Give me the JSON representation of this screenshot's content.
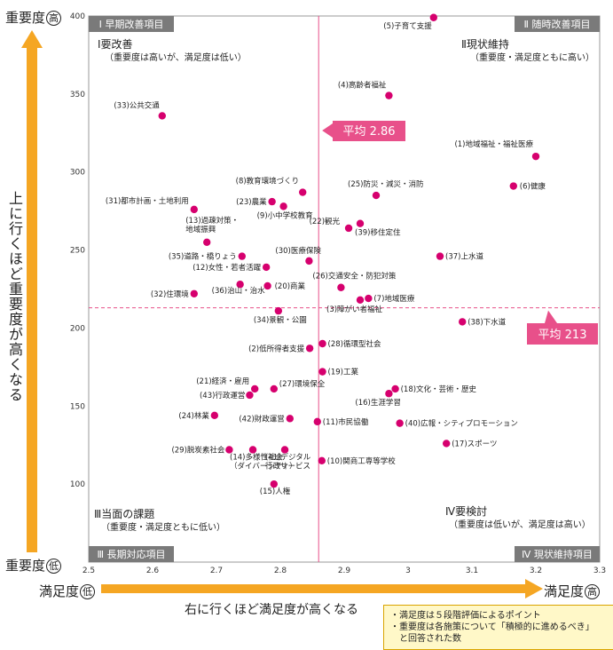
{
  "y_axis": {
    "high_label": "重要度",
    "high_mark": "高",
    "low_label": "重要度",
    "low_mark": "低",
    "description": "上に行くほど重要度が高くなる"
  },
  "x_axis": {
    "low_label": "満足度",
    "low_mark": "低",
    "high_label": "満足度",
    "high_mark": "高",
    "description": "右に行くほど満足度が高くなる"
  },
  "notes": [
    "・満足度は５段階評価によるポイント",
    "・重要度は各施策について「積極的に進めるべき」",
    "と回答された数"
  ],
  "quadrants": {
    "q1": {
      "badge": "Ⅰ 早期改善項目",
      "heading": "Ⅰ要改善",
      "sub": "（重要度は高いが、満足度は低い）"
    },
    "q2": {
      "badge": "Ⅱ 随時改善項目",
      "heading": "Ⅱ現状維持",
      "sub": "（重要度・満足度ともに高い）"
    },
    "q3": {
      "badge": "Ⅲ 長期対応項目",
      "heading": "Ⅲ当面の課題",
      "sub": "（重要度・満足度ともに低い）"
    },
    "q4": {
      "badge": "Ⅳ 現状維持項目",
      "heading": "Ⅳ要検討",
      "sub": "（重要度は低いが、満足度は高い）"
    }
  },
  "chart_data": {
    "type": "scatter",
    "xlim": [
      2.5,
      3.3
    ],
    "ylim": [
      50,
      400
    ],
    "x_ticks": [
      "2.5",
      "2.6",
      "2.7",
      "2.8",
      "2.9",
      "3",
      "3.1",
      "3.2",
      "3.3"
    ],
    "y_ticks": [
      "100",
      "150",
      "200",
      "250",
      "300",
      "350",
      "400"
    ],
    "mean_x": {
      "value": 2.86,
      "label": "平均 2.86"
    },
    "mean_y": {
      "value": 213,
      "label": "平均 213"
    },
    "point_color": "#d6006e",
    "accent_color": "#e8508a",
    "axis_arrow_color": "#f5a623",
    "points": [
      {
        "label": "(5)子育て支援",
        "x": 3.04,
        "y": 399
      },
      {
        "label": "(4)高齢者福祉",
        "x": 2.97,
        "y": 349
      },
      {
        "label": "(33)公共交通",
        "x": 2.615,
        "y": 336
      },
      {
        "label": "(1)地域福祉・福祉医療",
        "x": 3.2,
        "y": 310
      },
      {
        "label": "(6)健康",
        "x": 3.165,
        "y": 291
      },
      {
        "label": "(8)教育環境づくり",
        "x": 2.835,
        "y": 287
      },
      {
        "label": "(23)農業",
        "x": 2.787,
        "y": 281
      },
      {
        "label": "(9)小中学校教育",
        "x": 2.805,
        "y": 278
      },
      {
        "label": "(25)防災・減災・消防",
        "x": 2.95,
        "y": 285
      },
      {
        "label": "(31)都市計画・土地利用",
        "x": 2.665,
        "y": 276
      },
      {
        "label": "(22)観光",
        "x": 2.907,
        "y": 264
      },
      {
        "label": "(39)移住定住",
        "x": 2.925,
        "y": 267
      },
      {
        "label": "(13)過疎対策・地域振興",
        "x": 2.685,
        "y": 255
      },
      {
        "label": "(35)道路・橋りょう",
        "x": 2.74,
        "y": 246
      },
      {
        "label": "(30)医療保険",
        "x": 2.845,
        "y": 243
      },
      {
        "label": "(37)上水道",
        "x": 3.05,
        "y": 246
      },
      {
        "label": "(12)女性・若者活躍",
        "x": 2.778,
        "y": 239
      },
      {
        "label": "(26)交通安全・防犯対策",
        "x": 2.895,
        "y": 226
      },
      {
        "label": "(36)治山・治水",
        "x": 2.737,
        "y": 228
      },
      {
        "label": "(20)商業",
        "x": 2.78,
        "y": 227
      },
      {
        "label": "(32)住環境",
        "x": 2.665,
        "y": 222
      },
      {
        "label": "(7)地域医療",
        "x": 2.938,
        "y": 219
      },
      {
        "label": "(3)障がい者福祉",
        "x": 2.925,
        "y": 218
      },
      {
        "label": "(34)景観・公園",
        "x": 2.797,
        "y": 211
      },
      {
        "label": "(38)下水道",
        "x": 3.085,
        "y": 204
      },
      {
        "label": "(28)循環型社会",
        "x": 2.866,
        "y": 190
      },
      {
        "label": "(2)低所得者支援",
        "x": 2.846,
        "y": 187
      },
      {
        "label": "(19)工業",
        "x": 2.866,
        "y": 172
      },
      {
        "label": "(21)経済・雇用",
        "x": 2.76,
        "y": 161
      },
      {
        "label": "(43)行政運営",
        "x": 2.752,
        "y": 157
      },
      {
        "label": "(27)環境保全",
        "x": 2.79,
        "y": 161
      },
      {
        "label": "(18)文化・芸術・歴史",
        "x": 2.98,
        "y": 161
      },
      {
        "label": "(16)生涯学習",
        "x": 2.97,
        "y": 158
      },
      {
        "label": "(24)林業",
        "x": 2.697,
        "y": 144
      },
      {
        "label": "(42)財政運営",
        "x": 2.815,
        "y": 142
      },
      {
        "label": "(11)市民協働",
        "x": 2.858,
        "y": 140
      },
      {
        "label": "(40)広報・シティプロモーション",
        "x": 2.987,
        "y": 139
      },
      {
        "label": "(17)スポーツ",
        "x": 3.06,
        "y": 126
      },
      {
        "label": "(29)脱炭素社会",
        "x": 2.72,
        "y": 122
      },
      {
        "label": "(14)多様性社会（ダイバーシティ）",
        "x": 2.757,
        "y": 122
      },
      {
        "label": "(41)デジタル行政サービス",
        "x": 2.807,
        "y": 122
      },
      {
        "label": "(10)関商工専等学校",
        "x": 2.865,
        "y": 115
      },
      {
        "label": "(15)人権",
        "x": 2.79,
        "y": 100
      }
    ]
  }
}
